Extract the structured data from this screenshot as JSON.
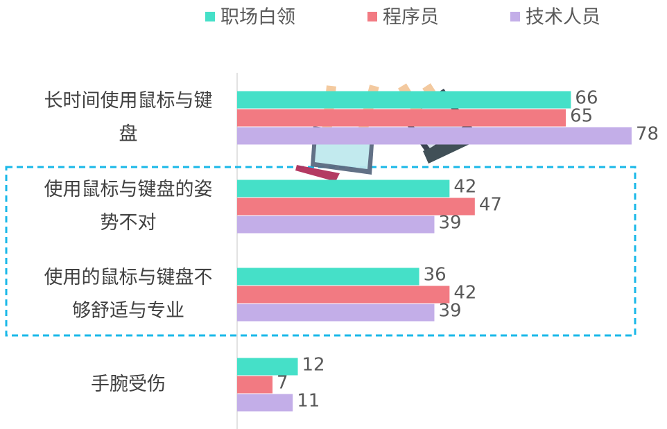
{
  "chart_data": {
    "type": "bar",
    "orientation": "horizontal",
    "categories": [
      "长时间使用鼠标与键盘",
      "使用鼠标与键盘的姿势不对",
      "使用的鼠标与键盘不够舒适与专业",
      "手腕受伤"
    ],
    "series": [
      {
        "name": "职场白领",
        "color": "#45e0c8",
        "values": [
          66,
          42,
          36,
          12
        ]
      },
      {
        "name": "程序员",
        "color": "#f27a82",
        "values": [
          65,
          47,
          42,
          7
        ]
      },
      {
        "name": "技术人员",
        "color": "#c3aee8",
        "values": [
          78,
          39,
          39,
          11
        ]
      }
    ],
    "xlim": [
      0,
      85
    ]
  }
}
